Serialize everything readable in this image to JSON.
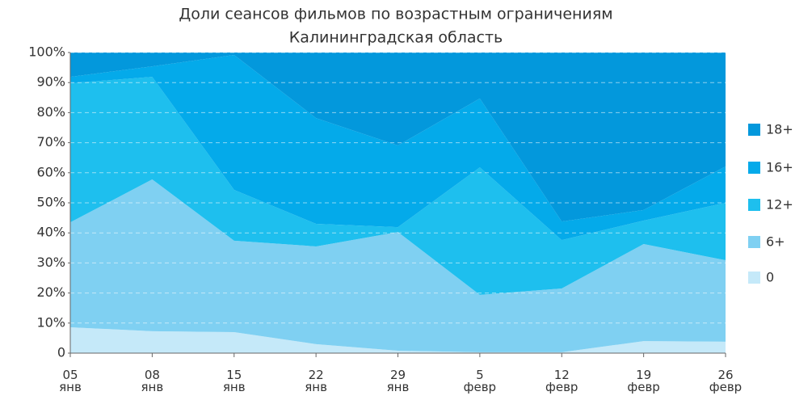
{
  "chart_data": {
    "type": "area",
    "stacked": true,
    "title": "Доли сеансов фильмов по возрастным ограничениям",
    "subtitle": "Калининградская область",
    "categories": [
      "05 янв",
      "08 янв",
      "15 янв",
      "22 янв",
      "29 янв",
      "5 февр",
      "12 февр",
      "19 февр",
      "26 февр"
    ],
    "series": [
      {
        "name": "0",
        "color": "#c5e9f9",
        "values": [
          8.6,
          7.3,
          7,
          3,
          0.8,
          0.3,
          0.3,
          4,
          3.8
        ]
      },
      {
        "name": "6+",
        "color": "#7fd0f2",
        "values": [
          34.9,
          50.5,
          30.4,
          32.5,
          39.5,
          19.1,
          21.2,
          32.3,
          27.1
        ]
      },
      {
        "name": "12+",
        "color": "#1ebfee",
        "values": [
          46.3,
          34.1,
          16.9,
          7.5,
          1.6,
          42.4,
          16.1,
          7.8,
          19.1
        ]
      },
      {
        "name": "16+",
        "color": "#04aaea",
        "values": [
          2.1,
          3.5,
          44.9,
          35.2,
          27.2,
          22.9,
          6.2,
          3.5,
          12.1
        ]
      },
      {
        "name": "18+",
        "color": "#0398dc",
        "values": [
          8.1,
          4.6,
          0.8,
          21.8,
          30.9,
          15.3,
          56.2,
          52.4,
          37.9
        ]
      }
    ],
    "ylim": [
      0,
      100
    ],
    "yticks": [
      0,
      {
        "value": 10,
        "label": "10%"
      },
      {
        "value": 20,
        "label": "20%"
      },
      {
        "value": 30,
        "label": "30%"
      },
      {
        "value": 40,
        "label": "40%"
      },
      {
        "value": 50,
        "label": "50%"
      },
      {
        "value": 60,
        "label": "60%"
      },
      {
        "value": 70,
        "label": "70%"
      },
      {
        "value": 80,
        "label": "80%"
      },
      {
        "value": 90,
        "label": "90%"
      },
      {
        "value": 100,
        "label": "100%"
      }
    ],
    "grid": true,
    "legend": "right"
  }
}
